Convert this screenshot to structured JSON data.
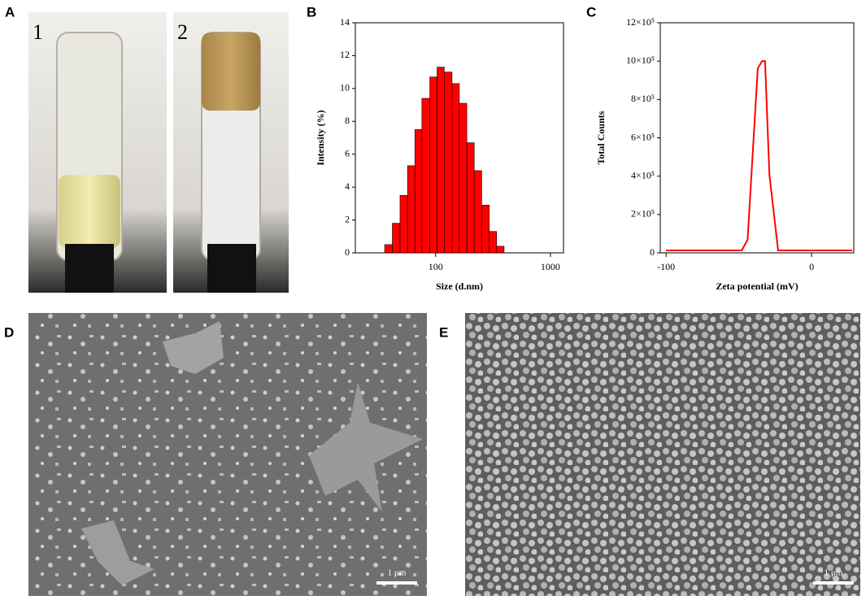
{
  "panels": {
    "A": {
      "label": "A",
      "tube_labels": [
        "1",
        "2"
      ]
    },
    "B": {
      "label": "B"
    },
    "C": {
      "label": "C"
    },
    "D": {
      "label": "D",
      "scale_bar": "1 μm"
    },
    "E": {
      "label": "E",
      "scale_bar": "1 μm"
    }
  },
  "chart_data": [
    {
      "type": "histogram",
      "x_label": "Size (d.nm)",
      "y_label": "Intensity (%)",
      "bins": [
        36,
        42,
        49,
        57,
        66,
        76,
        89,
        103,
        119,
        139,
        161,
        187,
        217,
        252,
        293,
        340,
        395
      ],
      "values": [
        0.5,
        1.8,
        3.5,
        5.3,
        7.5,
        9.4,
        10.7,
        11.3,
        11,
        10.3,
        9.1,
        6.7,
        5,
        2.9,
        1.3,
        0.4
      ],
      "color": "#ff0000",
      "xscale": "log",
      "xlim": [
        20,
        1300
      ],
      "xticks": [
        100,
        1000
      ],
      "ylim": [
        0,
        14
      ],
      "yticks": [
        0,
        2,
        4,
        6,
        8,
        10,
        12,
        14
      ]
    },
    {
      "type": "line",
      "x_label": "Zeta potential (mV)",
      "y_label": "Total Counts",
      "x": [
        -100,
        -48,
        -44,
        -37,
        -34,
        -32,
        -29,
        -23,
        28
      ],
      "values": [
        12700,
        12700,
        67800,
        962000,
        1000000,
        1000000,
        407000,
        12700,
        12700
      ],
      "color": "#ff0000",
      "xlim": [
        -104,
        29
      ],
      "xticks": [
        -100,
        0
      ],
      "ylim": [
        0,
        1200000
      ],
      "yticks": [
        0,
        {
          "value": 200000,
          "label": "2×10⁵"
        },
        {
          "value": 400000,
          "label": "4×10⁵"
        },
        {
          "value": 600000,
          "label": "6×10⁵"
        },
        {
          "value": 800000,
          "label": "8×10⁵"
        },
        {
          "value": 1000000,
          "label": "10×10⁵"
        },
        {
          "value": 1200000,
          "label": "12×10⁵"
        }
      ]
    }
  ]
}
